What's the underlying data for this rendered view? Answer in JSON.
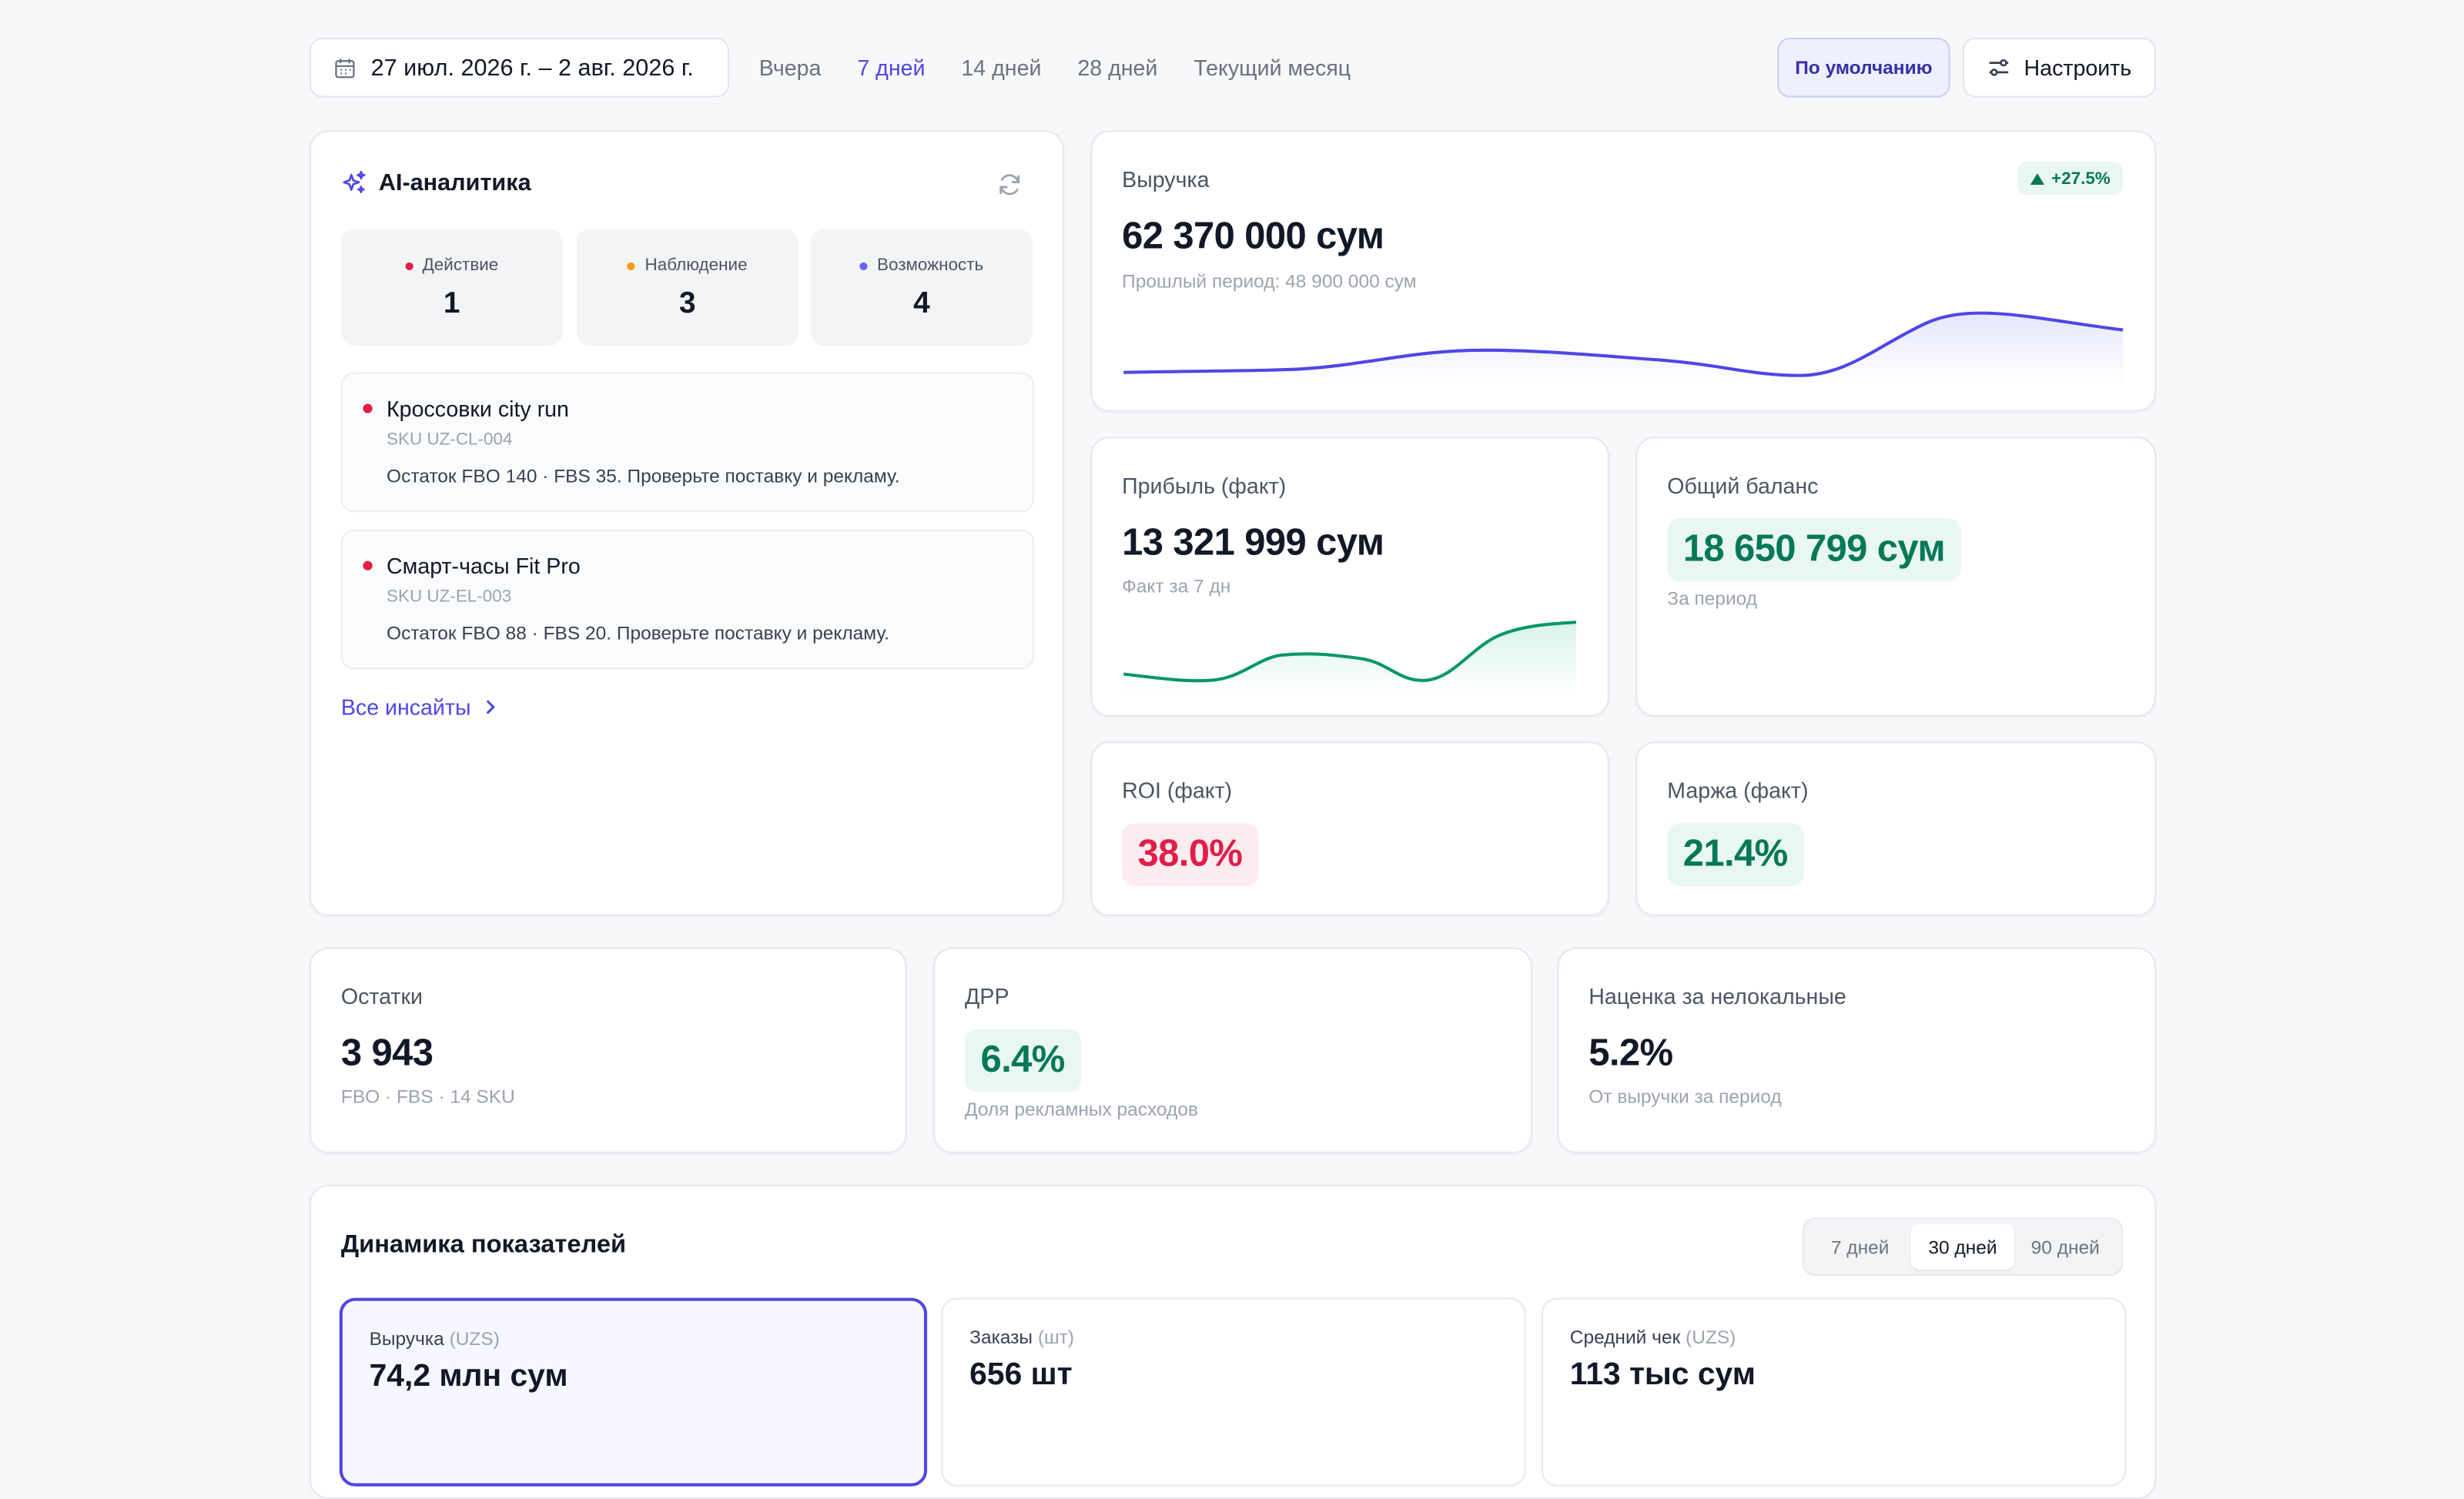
{
  "toolbar": {
    "date_range": "27 июл. 2026 г. – 2 авг. 2026 г.",
    "periods": [
      "Вчера",
      "7 дней",
      "14 дней",
      "28 дней",
      "Текущий месяц"
    ],
    "active_period": "7 дней",
    "default_button": "По умолчанию",
    "configure_button": "Настроить"
  },
  "ai": {
    "title": "AI-аналитика",
    "stats": [
      {
        "label": "Действие",
        "value": "1",
        "color": "#e11d48"
      },
      {
        "label": "Наблюдение",
        "value": "3",
        "color": "#f59e0b"
      },
      {
        "label": "Возможность",
        "value": "4",
        "color": "#6366f1"
      }
    ],
    "insights": [
      {
        "title": "Кроссовки city run",
        "sku": "SKU UZ-CL-004",
        "desc": "Остаток FBO 140 · FBS 35. Проверьте поставку и рекламу."
      },
      {
        "title": "Смарт-часы Fit Pro",
        "sku": "SKU UZ-EL-003",
        "desc": "Остаток FBO 88 · FBS 20. Проверьте поставку и рекламу."
      }
    ],
    "all_link": "Все инсайты"
  },
  "revenue": {
    "label": "Выручка",
    "value": "62 370 000 сум",
    "sub": "Прошлый период: 48 900 000 сум",
    "trend": "+27.5%"
  },
  "profit": {
    "label": "Прибыль (факт)",
    "value": "13 321 999 сум",
    "sub": "Факт за 7 дн"
  },
  "balance": {
    "label": "Общий баланс",
    "value": "18 650 799 сум",
    "sub": "За период"
  },
  "roi": {
    "label": "ROI (факт)",
    "value": "38.0%"
  },
  "margin": {
    "label": "Маржа (факт)",
    "value": "21.4%"
  },
  "stock": {
    "label": "Остатки",
    "value": "3 943",
    "sub": "FBO · FBS · 14 SKU"
  },
  "drr": {
    "label": "ДРР",
    "value": "6.4%",
    "sub": "Доля рекламных расходов"
  },
  "markup": {
    "label": "Наценка за нелокальные",
    "value": "5.2%",
    "sub": "От выручки за период"
  },
  "dynamics": {
    "title": "Динамика показателей",
    "ranges": [
      "7 дней",
      "30 дней",
      "90 дней"
    ],
    "active_range": "30 дней",
    "metrics": [
      {
        "label": "Выручка",
        "unit": "(UZS)",
        "value": "74,2 млн сум"
      },
      {
        "label": "Заказы",
        "unit": "(шт)",
        "value": "656 шт"
      },
      {
        "label": "Средний чек",
        "unit": "(UZS)",
        "value": "113 тыс сум"
      }
    ]
  }
}
